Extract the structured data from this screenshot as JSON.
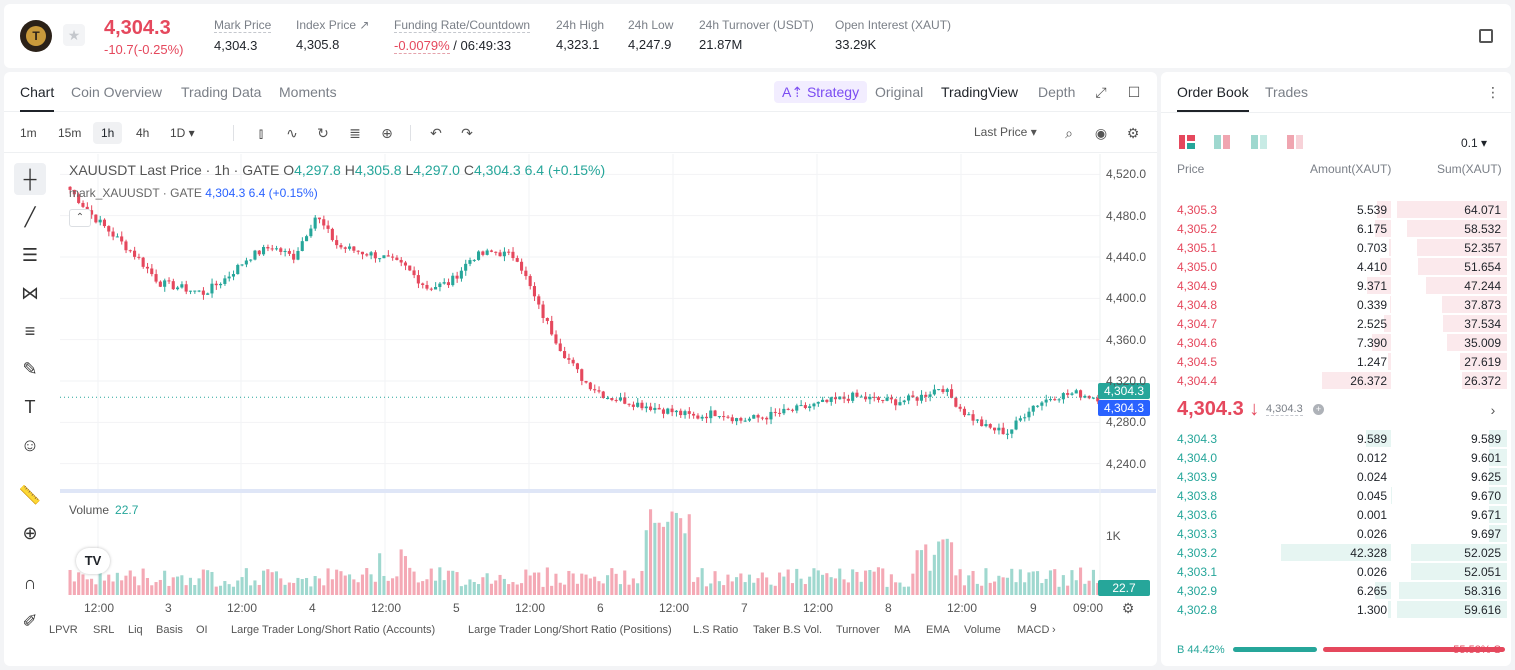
{
  "header": {
    "last_price": "4,304.3",
    "change": "-10.7(-0.25%)",
    "mark_price_label": "Mark Price",
    "mark_price": "4,304.3",
    "index_price_label": "Index Price ↗",
    "index_price": "4,305.8",
    "funding_label": "Funding Rate/Countdown",
    "funding_rate": "-0.0079%",
    "countdown": "/ 06:49:33",
    "high_label": "24h High",
    "high": "4,323.1",
    "low_label": "24h Low",
    "low": "4,247.9",
    "turnover_label": "24h Turnover (USDT)",
    "turnover": "21.87M",
    "oi_label": "Open Interest (XAUT)",
    "oi": "33.29K"
  },
  "chart_tabs": [
    "Chart",
    "Coin Overview",
    "Trading Data",
    "Moments"
  ],
  "chart_view": {
    "strategy": "A⇡ Strategy",
    "original": "Original",
    "tradingview": "TradingView",
    "depth": "Depth"
  },
  "timeframes": [
    "1m",
    "15m",
    "1h",
    "4h",
    "1D ▾"
  ],
  "price_type": "Last Price ▾",
  "legend": {
    "symbol": "XAUUSDT Last Price · 1h · GATE",
    "o_label": "O",
    "o": "4,297.8",
    "h_label": "H",
    "h": "4,305.8",
    "l_label": "L",
    "l": "4,297.0",
    "c_label": "C",
    "c": "4,304.3",
    "chg": "6.4 (+0.15%)",
    "mark_line": "mark_XAUUSDT · GATE",
    "mark_val": "4,304.3",
    "mark_chg": "6.4 (+0.15%)"
  },
  "volume_legend": {
    "label": "Volume",
    "value": "22.7"
  },
  "price_labels": {
    "last": "4,304.3",
    "mark": "4,304.3",
    "vol": "22.7"
  },
  "indicators": [
    "LPVR",
    "SRL",
    "Liq",
    "Basis",
    "OI",
    "Large Trader Long/Short Ratio (Accounts)",
    "Large Trader Long/Short Ratio (Positions)",
    "L.S Ratio",
    "Taker B.S Vol.",
    "Turnover",
    "MA",
    "EMA",
    "Volume",
    "MACD"
  ],
  "chart_data": {
    "type": "candlestick",
    "title": "XAUUSDT Last Price · 1h · GATE",
    "y_ticks": [
      "4,520.0",
      "4,480.0",
      "4,440.0",
      "4,400.0",
      "4,360.0",
      "4,320.0",
      "4,280.0",
      "4,240.0"
    ],
    "y_range": [
      4230,
      4530
    ],
    "x_ticks": [
      "12:00",
      "3",
      "12:00",
      "4",
      "12:00",
      "5",
      "12:00",
      "6",
      "12:00",
      "7",
      "12:00",
      "8",
      "12:00",
      "9",
      "09:00"
    ],
    "volume_ticks": [
      "1K"
    ],
    "key_closes": [
      4505,
      4480,
      4460,
      4440,
      4415,
      4410,
      4405,
      4420,
      4440,
      4450,
      4440,
      4480,
      4450,
      4445,
      4440,
      4430,
      4410,
      4415,
      4440,
      4445,
      4440,
      4390,
      4350,
      4320,
      4305,
      4300,
      4295,
      4290,
      4285,
      4290,
      4282,
      4285,
      4290,
      4295,
      4300,
      4305,
      4302,
      4300,
      4304,
      4315,
      4290,
      4275,
      4270,
      4295,
      4305,
      4308,
      4304
    ],
    "volume_hint": "volume bars per candle, peaks near day 5 12:00 and day 8"
  },
  "order_book": {
    "tabs": [
      "Order Book",
      "Trades"
    ],
    "precision": "0.1 ▾",
    "headers": {
      "price": "Price",
      "amount": "Amount(XAUT)",
      "sum": "Sum(XAUT)"
    },
    "asks": [
      {
        "p": "4,305.3",
        "a": "5.539",
        "s": "64.071"
      },
      {
        "p": "4,305.2",
        "a": "6.175",
        "s": "58.532"
      },
      {
        "p": "4,305.1",
        "a": "0.703",
        "s": "52.357"
      },
      {
        "p": "4,305.0",
        "a": "4.410",
        "s": "51.654"
      },
      {
        "p": "4,304.9",
        "a": "9.371",
        "s": "47.244"
      },
      {
        "p": "4,304.8",
        "a": "0.339",
        "s": "37.873"
      },
      {
        "p": "4,304.7",
        "a": "2.525",
        "s": "37.534"
      },
      {
        "p": "4,304.6",
        "a": "7.390",
        "s": "35.009"
      },
      {
        "p": "4,304.5",
        "a": "1.247",
        "s": "27.619"
      },
      {
        "p": "4,304.4",
        "a": "26.372",
        "s": "26.372"
      }
    ],
    "mid_price": "4,304.3 ↓",
    "mid_mark": "4,304.3",
    "bids": [
      {
        "p": "4,304.3",
        "a": "9.589",
        "s": "9.589"
      },
      {
        "p": "4,304.0",
        "a": "0.012",
        "s": "9.601"
      },
      {
        "p": "4,303.9",
        "a": "0.024",
        "s": "9.625"
      },
      {
        "p": "4,303.8",
        "a": "0.045",
        "s": "9.670"
      },
      {
        "p": "4,303.6",
        "a": "0.001",
        "s": "9.671"
      },
      {
        "p": "4,303.3",
        "a": "0.026",
        "s": "9.697"
      },
      {
        "p": "4,303.2",
        "a": "42.328",
        "s": "52.025"
      },
      {
        "p": "4,303.1",
        "a": "0.026",
        "s": "52.051"
      },
      {
        "p": "4,302.9",
        "a": "6.265",
        "s": "58.316"
      },
      {
        "p": "4,302.8",
        "a": "1.300",
        "s": "59.616"
      }
    ],
    "buy_ratio": "B 44.42%",
    "sell_ratio": "55.58% S",
    "buy_ratio_value": 44.42
  },
  "colors": {
    "up": "#26a69a",
    "down": "#e5485d",
    "accent": "#7b4cf2",
    "mark": "#2962ff"
  }
}
